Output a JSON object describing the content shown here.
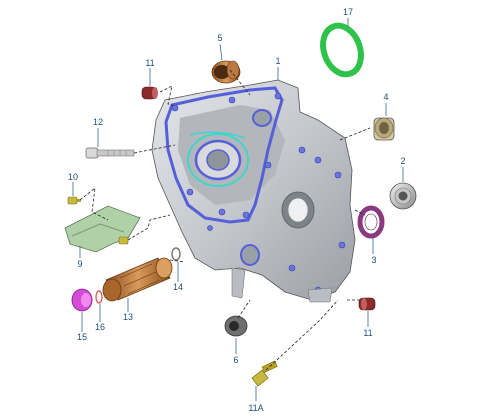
{
  "colors": {
    "callout": "#1a4f7a",
    "housing": "#c9cbd0",
    "gasket_blue": "#5560d8",
    "gasket_cyan": "#3fd6c8",
    "gasket_green": "#2fc24a",
    "bushing_bronze": "#c07a3a",
    "seal_purple": "#8a3a80",
    "cap_magenta": "#d44bd6",
    "bolt_olive": "#b8a020",
    "cover_green": "#a8c8a0",
    "plug_maroon": "#8b2a2a"
  },
  "callouts": [
    {
      "id": "c1",
      "label": "1"
    },
    {
      "id": "c2",
      "label": "2"
    },
    {
      "id": "c3",
      "label": "3"
    },
    {
      "id": "c4",
      "label": "4"
    },
    {
      "id": "c5",
      "label": "5"
    },
    {
      "id": "c6",
      "label": "6"
    },
    {
      "id": "c9",
      "label": "9"
    },
    {
      "id": "c10",
      "label": "10"
    },
    {
      "id": "c11a",
      "label": "11"
    },
    {
      "id": "c11b",
      "label": "11"
    },
    {
      "id": "c11A",
      "label": "11A"
    },
    {
      "id": "c12",
      "label": "12"
    },
    {
      "id": "c13",
      "label": "13"
    },
    {
      "id": "c14",
      "label": "14"
    },
    {
      "id": "c15",
      "label": "15"
    },
    {
      "id": "c16",
      "label": "16"
    },
    {
      "id": "c17",
      "label": "17"
    }
  ]
}
